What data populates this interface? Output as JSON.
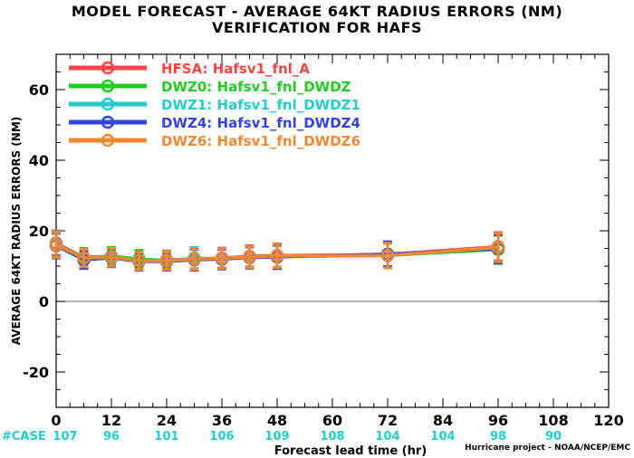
{
  "chart_data": {
    "type": "line",
    "title": "MODEL FORECAST - AVERAGE 64KT RADIUS ERRORS (NM)",
    "subtitle": "VERIFICATION FOR HAFS",
    "xlabel": "Forecast lead time (hr)",
    "ylabel": "AVERAGE 64KT RADIUS ERRORS (NM)",
    "xlim": [
      0,
      120
    ],
    "ylim": [
      -30,
      70
    ],
    "xticks": [
      0,
      12,
      24,
      36,
      48,
      60,
      72,
      84,
      96,
      108,
      120
    ],
    "yticks": [
      -20,
      0,
      20,
      40,
      60
    ],
    "x": [
      0,
      6,
      12,
      18,
      24,
      30,
      36,
      42,
      48,
      72,
      96
    ],
    "series": [
      {
        "name": "HFSA: Hafsv1_fnl_A",
        "color": "#ff4444",
        "values": [
          16.5,
          12.5,
          12.8,
          11.5,
          11.8,
          12.0,
          12.3,
          12.8,
          13.0,
          13.3,
          15.5
        ],
        "err": [
          3.5,
          2.5,
          2.5,
          2.5,
          2.5,
          3.0,
          2.8,
          3.0,
          3.3,
          3.5,
          4.0
        ]
      },
      {
        "name": "DWZ0: Hafsv1_fnl_DWDZ",
        "color": "#22cc22",
        "values": [
          16.0,
          12.5,
          12.8,
          12.0,
          11.6,
          12.0,
          12.2,
          12.6,
          12.7,
          13.0,
          14.7
        ],
        "err": [
          3.5,
          2.5,
          2.5,
          2.5,
          2.5,
          3.0,
          2.8,
          3.0,
          3.3,
          3.5,
          4.0
        ]
      },
      {
        "name": "DWZ1: Hafsv1_fnl_DWDZ1",
        "color": "#22cccc",
        "values": [
          16.2,
          12.0,
          12.5,
          11.5,
          11.4,
          12.3,
          12.0,
          12.5,
          12.8,
          13.0,
          15.2
        ],
        "err": [
          3.5,
          2.5,
          2.5,
          2.5,
          2.5,
          3.0,
          2.8,
          3.0,
          3.3,
          3.5,
          4.0
        ]
      },
      {
        "name": "DWZ4: Hafsv1_fnl_DWDZ4",
        "color": "#3344dd",
        "values": [
          15.8,
          11.8,
          12.3,
          11.3,
          11.3,
          11.8,
          12.0,
          12.4,
          12.6,
          13.4,
          15.0
        ],
        "err": [
          3.5,
          2.5,
          2.5,
          2.5,
          2.5,
          3.0,
          2.8,
          3.0,
          3.3,
          3.5,
          4.0
        ]
      },
      {
        "name": "DWZ6: Hafsv1_fnl_DWDZ6",
        "color": "#ee8833",
        "values": [
          16.0,
          12.3,
          12.5,
          11.5,
          11.5,
          12.0,
          12.2,
          12.6,
          12.9,
          13.0,
          15.3
        ],
        "err": [
          3.5,
          2.5,
          2.5,
          2.5,
          2.5,
          3.0,
          2.8,
          3.0,
          3.3,
          3.5,
          4.0
        ]
      }
    ],
    "case_label": "#CASE",
    "case_counts": [
      {
        "x": 0,
        "n": "107"
      },
      {
        "x": 12,
        "n": "96"
      },
      {
        "x": 24,
        "n": "101"
      },
      {
        "x": 36,
        "n": "106"
      },
      {
        "x": 48,
        "n": "109"
      },
      {
        "x": 60,
        "n": "108"
      },
      {
        "x": 72,
        "n": "104"
      },
      {
        "x": 84,
        "n": "104"
      },
      {
        "x": 96,
        "n": "98"
      },
      {
        "x": 108,
        "n": "90"
      }
    ],
    "grid": false,
    "legend_position": "top-left"
  },
  "footer": {
    "credit": "Hurricane project - NOAA/NCEP/EMC"
  },
  "colors": {
    "case_color": "#22cccc",
    "axis": "#000000",
    "zero_line": "#888888"
  }
}
